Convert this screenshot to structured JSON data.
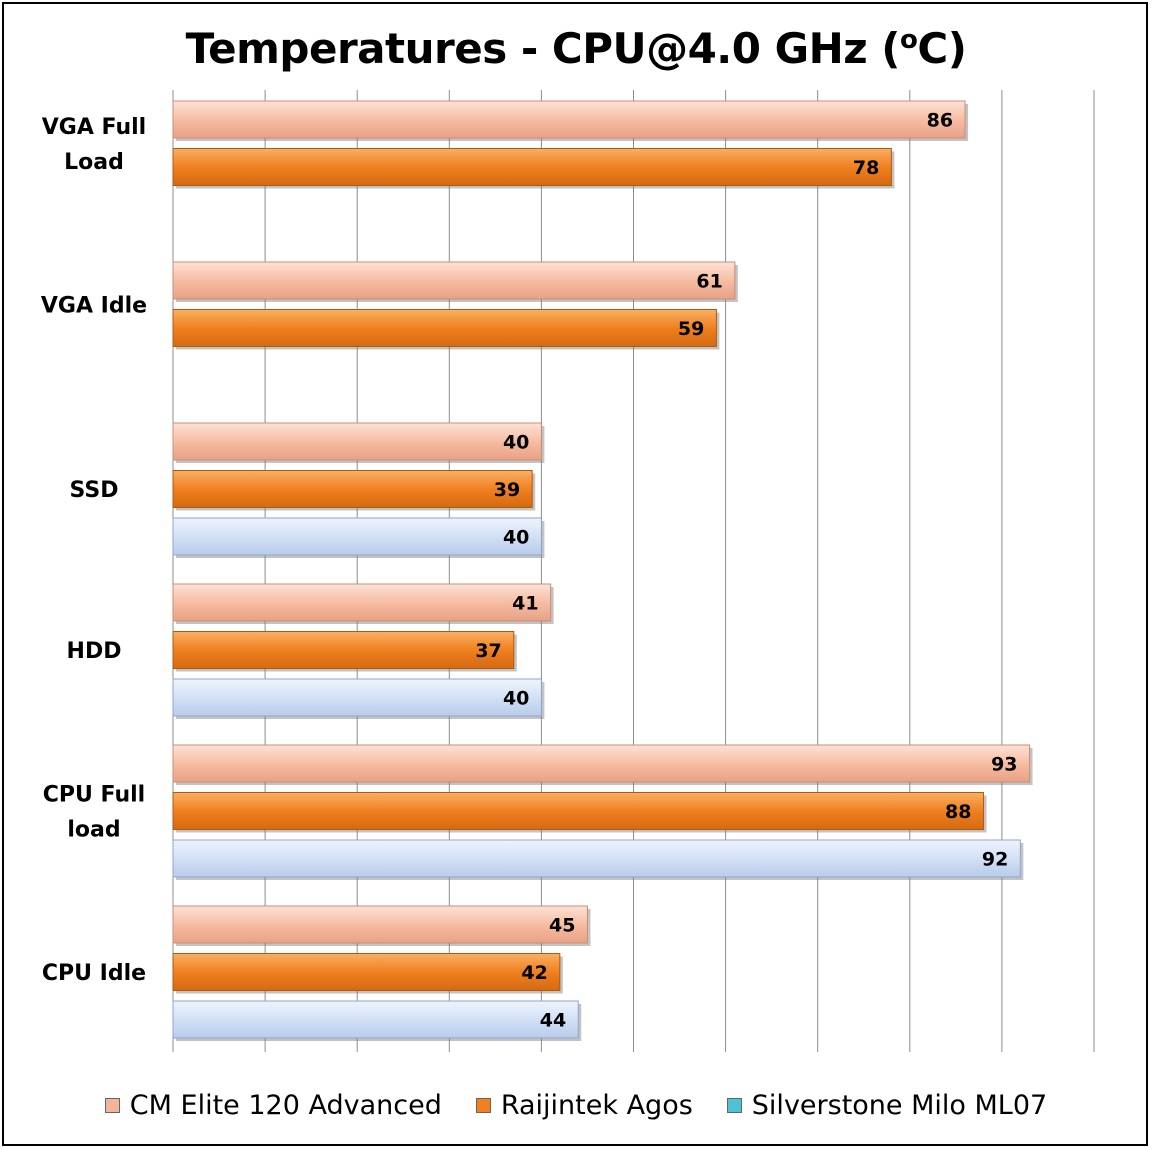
{
  "title": "Temperatures - CPU@4.0 GHz (",
  "title_sup": "o",
  "title_end": "C)",
  "chart_data": {
    "type": "bar",
    "orientation": "horizontal",
    "title": "Temperatures - CPU@4.0 GHz (oC)",
    "categories": [
      "VGA Full Load",
      "VGA Idle",
      "SSD",
      "HDD",
      "CPU Full load",
      "CPU Idle"
    ],
    "category_lines": [
      [
        "VGA Full",
        "Load"
      ],
      [
        "VGA Idle"
      ],
      [
        "SSD"
      ],
      [
        "HDD"
      ],
      [
        "CPU Full",
        "load"
      ],
      [
        "CPU Idle"
      ]
    ],
    "series": [
      {
        "name": "CM Elite 120 Advanced",
        "color": "#f4b49a",
        "values": [
          86,
          61,
          40,
          41,
          93,
          45
        ]
      },
      {
        "name": "Raijintek Agos",
        "color": "#f08020",
        "values": [
          78,
          59,
          39,
          37,
          88,
          42
        ]
      },
      {
        "name": "Silverstone Milo ML07",
        "color": "#c9d9f4",
        "values": [
          null,
          null,
          40,
          40,
          92,
          44
        ]
      }
    ],
    "legend_swatch_colors": [
      "#f4b49a",
      "#f08020",
      "#4ec3d6"
    ],
    "xlim": [
      0,
      100
    ],
    "grid": true,
    "legend_position": "bottom"
  }
}
